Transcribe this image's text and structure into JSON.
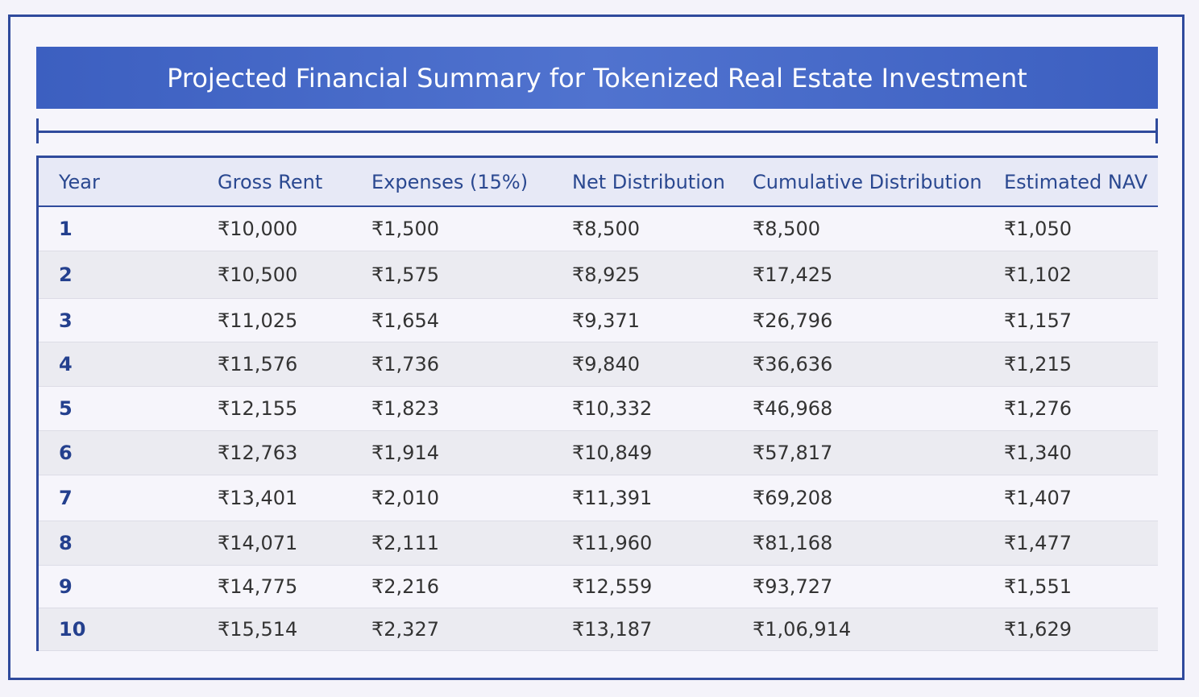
{
  "title": "Projected Financial Summary for Tokenized Real Estate Investment",
  "table": {
    "headers": [
      "Year",
      "Gross Rent",
      "Expenses (15%)",
      "Net Distribution",
      "Cumulative Distribution",
      "Estimated NAV"
    ],
    "rows": [
      [
        "1",
        "₹10,000",
        "₹1,500",
        "₹8,500",
        "₹8,500",
        "₹1,050"
      ],
      [
        "2",
        "₹10,500",
        "₹1,575",
        "₹8,925",
        "₹17,425",
        "₹1,102"
      ],
      [
        "3",
        "₹11,025",
        "₹1,654",
        "₹9,371",
        "₹26,796",
        "₹1,157"
      ],
      [
        "4",
        "₹11,576",
        "₹1,736",
        "₹9,840",
        "₹36,636",
        "₹1,215"
      ],
      [
        "5",
        "₹12,155",
        "₹1,823",
        "₹10,332",
        "₹46,968",
        "₹1,276"
      ],
      [
        "6",
        "₹12,763",
        "₹1,914",
        "₹10,849",
        "₹57,817",
        "₹1,340"
      ],
      [
        "7",
        "₹13,401",
        "₹2,010",
        "₹11,391",
        "₹69,208",
        "₹1,407"
      ],
      [
        "8",
        "₹14,071",
        "₹2,111",
        "₹11,960",
        "₹81,168",
        "₹1,477"
      ],
      [
        "9",
        "₹14,775",
        "₹2,216",
        "₹12,559",
        "₹93,727",
        "₹1,551"
      ],
      [
        "10",
        "₹15,514",
        "₹2,327",
        "₹13,187",
        "₹1,06,914",
        "₹1,629"
      ]
    ]
  }
}
